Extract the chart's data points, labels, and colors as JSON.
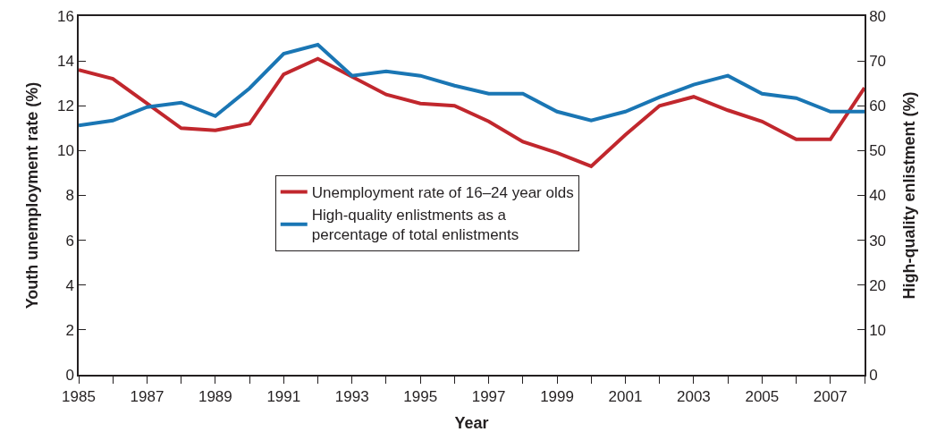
{
  "chart_data": {
    "type": "line",
    "xlabel": "Year",
    "ylabel": "Youth unemployment rate (%)",
    "y2label": "High-quality enlistment (%)",
    "x": [
      1985,
      1986,
      1987,
      1988,
      1989,
      1990,
      1991,
      1992,
      1993,
      1994,
      1995,
      1996,
      1997,
      1998,
      1999,
      2000,
      2001,
      2002,
      2003,
      2004,
      2005,
      2006,
      2007,
      2008
    ],
    "series": [
      {
        "name": "Unemployment rate of 16–24 year olds",
        "color": "#c1272d",
        "values": [
          13.6,
          13.2,
          12.1,
          11.0,
          10.9,
          11.2,
          13.4,
          14.1,
          13.3,
          12.5,
          12.1,
          12.0,
          11.3,
          10.4,
          9.9,
          9.3,
          10.7,
          12.0,
          12.4,
          11.8,
          11.3,
          10.5,
          10.5,
          12.8
        ]
      },
      {
        "name": "High-quality enlistments as a percentage of total enlistments",
        "color": "#1a76b4",
        "axis": "y2",
        "values": [
          55.6,
          56.7,
          59.7,
          60.7,
          57.7,
          63.9,
          71.6,
          73.6,
          66.7,
          67.7,
          66.7,
          64.5,
          62.7,
          62.7,
          58.7,
          56.7,
          58.7,
          61.9,
          64.7,
          66.7,
          62.7,
          61.7,
          58.7,
          58.7
        ]
      }
    ],
    "xlim": [
      1985,
      2008
    ],
    "xticks": [
      1985,
      {
        "value": 1986,
        "label": null
      },
      1987,
      {
        "value": 1988,
        "label": null
      },
      1989,
      {
        "value": 1990,
        "label": null
      },
      1991,
      {
        "value": 1992,
        "label": null
      },
      1993,
      {
        "value": 1994,
        "label": null
      },
      1995,
      {
        "value": 1996,
        "label": null
      },
      1997,
      {
        "value": 1998,
        "label": null
      },
      1999,
      {
        "value": 2000,
        "label": null
      },
      2001,
      {
        "value": 2002,
        "label": null
      },
      2003,
      {
        "value": 2004,
        "label": null
      },
      2005,
      {
        "value": 2006,
        "label": null
      },
      2007,
      {
        "value": 2008,
        "label": null
      }
    ],
    "ylim": [
      0,
      16
    ],
    "yticks": [
      0,
      2,
      4,
      6,
      8,
      10,
      12,
      14,
      16
    ],
    "y2lim": [
      0,
      80
    ],
    "y2ticks": [
      0,
      10,
      20,
      30,
      40,
      50,
      60,
      70,
      80
    ],
    "grid": false,
    "legend": "center",
    "marker": "none",
    "line_style": "solid"
  }
}
